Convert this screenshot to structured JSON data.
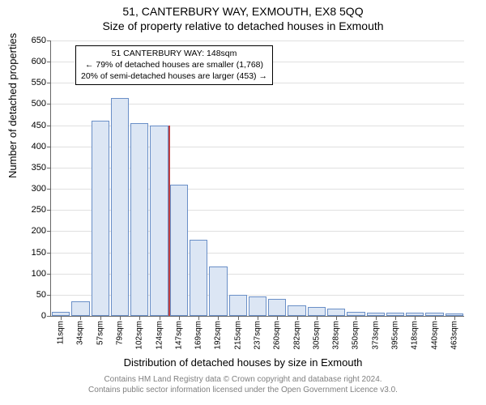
{
  "title_main": "51, CANTERBURY WAY, EXMOUTH, EX8 5QQ",
  "title_sub": "Size of property relative to detached houses in Exmouth",
  "y_axis_label": "Number of detached properties",
  "x_axis_label": "Distribution of detached houses by size in Exmouth",
  "footer_line1": "Contains HM Land Registry data © Crown copyright and database right 2024.",
  "footer_line2": "Contains public sector information licensed under the Open Government Licence v3.0.",
  "chart": {
    "type": "histogram",
    "ylim": [
      0,
      650
    ],
    "ytick_step": 50,
    "background_color": "#ffffff",
    "grid_color": "#e0e0e0",
    "bar_fill": "#dce6f4",
    "bar_stroke": "#6a8fc7",
    "marker_color": "#c04040",
    "label_fontsize": 13,
    "tick_fontsize": 11,
    "xtick_fontsize": 10,
    "x_categories": [
      "11sqm",
      "34sqm",
      "57sqm",
      "79sqm",
      "102sqm",
      "124sqm",
      "147sqm",
      "169sqm",
      "192sqm",
      "215sqm",
      "237sqm",
      "260sqm",
      "282sqm",
      "305sqm",
      "328sqm",
      "350sqm",
      "373sqm",
      "395sqm",
      "418sqm",
      "440sqm",
      "463sqm"
    ],
    "values": [
      10,
      35,
      460,
      515,
      455,
      450,
      310,
      180,
      117,
      50,
      45,
      40,
      25,
      22,
      18,
      10,
      8,
      8,
      8,
      8,
      5
    ],
    "marker": {
      "value_sqm": 148,
      "bar_index_after": 6
    },
    "annotation": {
      "line1": "51 CANTERBURY WAY: 148sqm",
      "line2": "← 79% of detached houses are smaller (1,768)",
      "line3": "20% of semi-detached houses are larger (453) →"
    }
  }
}
